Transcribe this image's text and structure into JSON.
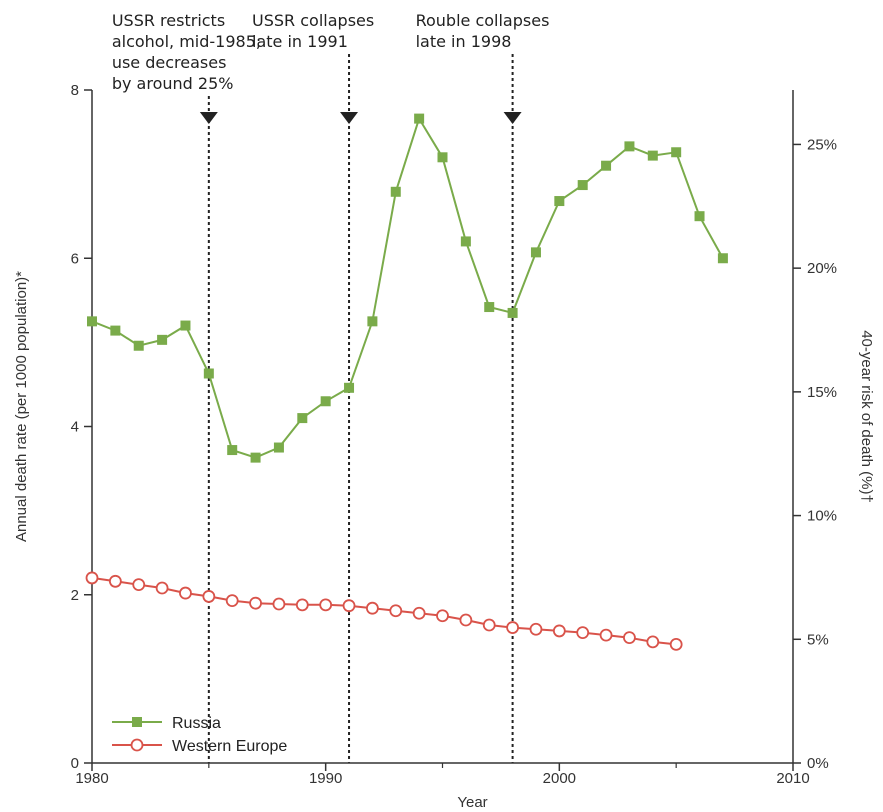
{
  "chart_data": {
    "type": "line",
    "xlabel": "Year",
    "ylabel": "Annual death rate (per 1000 population)*",
    "y2label": "40-year risk of death (%)†",
    "xlim": [
      1980,
      2010
    ],
    "ylim": [
      0,
      8
    ],
    "x_ticks": [
      {
        "value": 1980,
        "label": "1980"
      },
      {
        "value": 1990,
        "label": "1990"
      },
      {
        "value": 2000,
        "label": "2000"
      },
      {
        "value": 2010,
        "label": "2010"
      }
    ],
    "y_ticks": [
      {
        "value": 0,
        "label": "0"
      },
      {
        "value": 2,
        "label": "2"
      },
      {
        "value": 4,
        "label": "4"
      },
      {
        "value": 6,
        "label": "6"
      },
      {
        "value": 8,
        "label": "8"
      }
    ],
    "y2_ticks": [
      {
        "value": 0,
        "label": "0%"
      },
      {
        "value": 5,
        "label": "5%"
      },
      {
        "value": 10,
        "label": "10%"
      },
      {
        "value": 15,
        "label": "15%"
      },
      {
        "value": 20,
        "label": "20%"
      },
      {
        "value": 25,
        "label": "25%"
      }
    ],
    "y2lim": [
      0,
      27.2
    ],
    "grid": false,
    "legend_position": "bottom-left",
    "series": [
      {
        "name": "Russia",
        "color": "#7aab4a",
        "marker": "filled-square",
        "points": [
          [
            1980,
            5.25
          ],
          [
            1981,
            5.14
          ],
          [
            1982,
            4.96
          ],
          [
            1983,
            5.03
          ],
          [
            1984,
            5.2
          ],
          [
            1985,
            4.63
          ],
          [
            1986,
            3.72
          ],
          [
            1987,
            3.63
          ],
          [
            1988,
            3.75
          ],
          [
            1989,
            4.1
          ],
          [
            1990,
            4.3
          ],
          [
            1991,
            4.46
          ],
          [
            1992,
            5.25
          ],
          [
            1993,
            6.79
          ],
          [
            1994,
            7.66
          ],
          [
            1995,
            7.2
          ],
          [
            1996,
            6.2
          ],
          [
            1997,
            5.42
          ],
          [
            1998,
            5.35
          ],
          [
            1999,
            6.07
          ],
          [
            2000,
            6.68
          ],
          [
            2001,
            6.87
          ],
          [
            2002,
            7.1
          ],
          [
            2003,
            7.33
          ],
          [
            2004,
            7.22
          ],
          [
            2005,
            7.26
          ],
          [
            2006,
            6.5
          ],
          [
            2007,
            6.0
          ]
        ]
      },
      {
        "name": "Western Europe",
        "color": "#d9534a",
        "marker": "open-circle",
        "points": [
          [
            1980,
            2.2
          ],
          [
            1981,
            2.16
          ],
          [
            1982,
            2.12
          ],
          [
            1983,
            2.08
          ],
          [
            1984,
            2.02
          ],
          [
            1985,
            1.98
          ],
          [
            1986,
            1.93
          ],
          [
            1987,
            1.9
          ],
          [
            1988,
            1.89
          ],
          [
            1989,
            1.88
          ],
          [
            1990,
            1.88
          ],
          [
            1991,
            1.87
          ],
          [
            1992,
            1.84
          ],
          [
            1993,
            1.81
          ],
          [
            1994,
            1.78
          ],
          [
            1995,
            1.75
          ],
          [
            1996,
            1.7
          ],
          [
            1997,
            1.64
          ],
          [
            1998,
            1.61
          ],
          [
            1999,
            1.59
          ],
          [
            2000,
            1.57
          ],
          [
            2001,
            1.55
          ],
          [
            2002,
            1.52
          ],
          [
            2003,
            1.49
          ],
          [
            2004,
            1.44
          ],
          [
            2005,
            1.41
          ]
        ]
      }
    ],
    "annotations": [
      {
        "x": 1985,
        "lines": [
          "USSR restricts",
          "alcohol, mid-1985;",
          "use decreases",
          "by around 25%"
        ]
      },
      {
        "x": 1991,
        "lines": [
          "USSR collapses",
          "late in 1991"
        ]
      },
      {
        "x": 1998,
        "lines": [
          "Rouble collapses",
          "late in 1998"
        ]
      }
    ]
  }
}
